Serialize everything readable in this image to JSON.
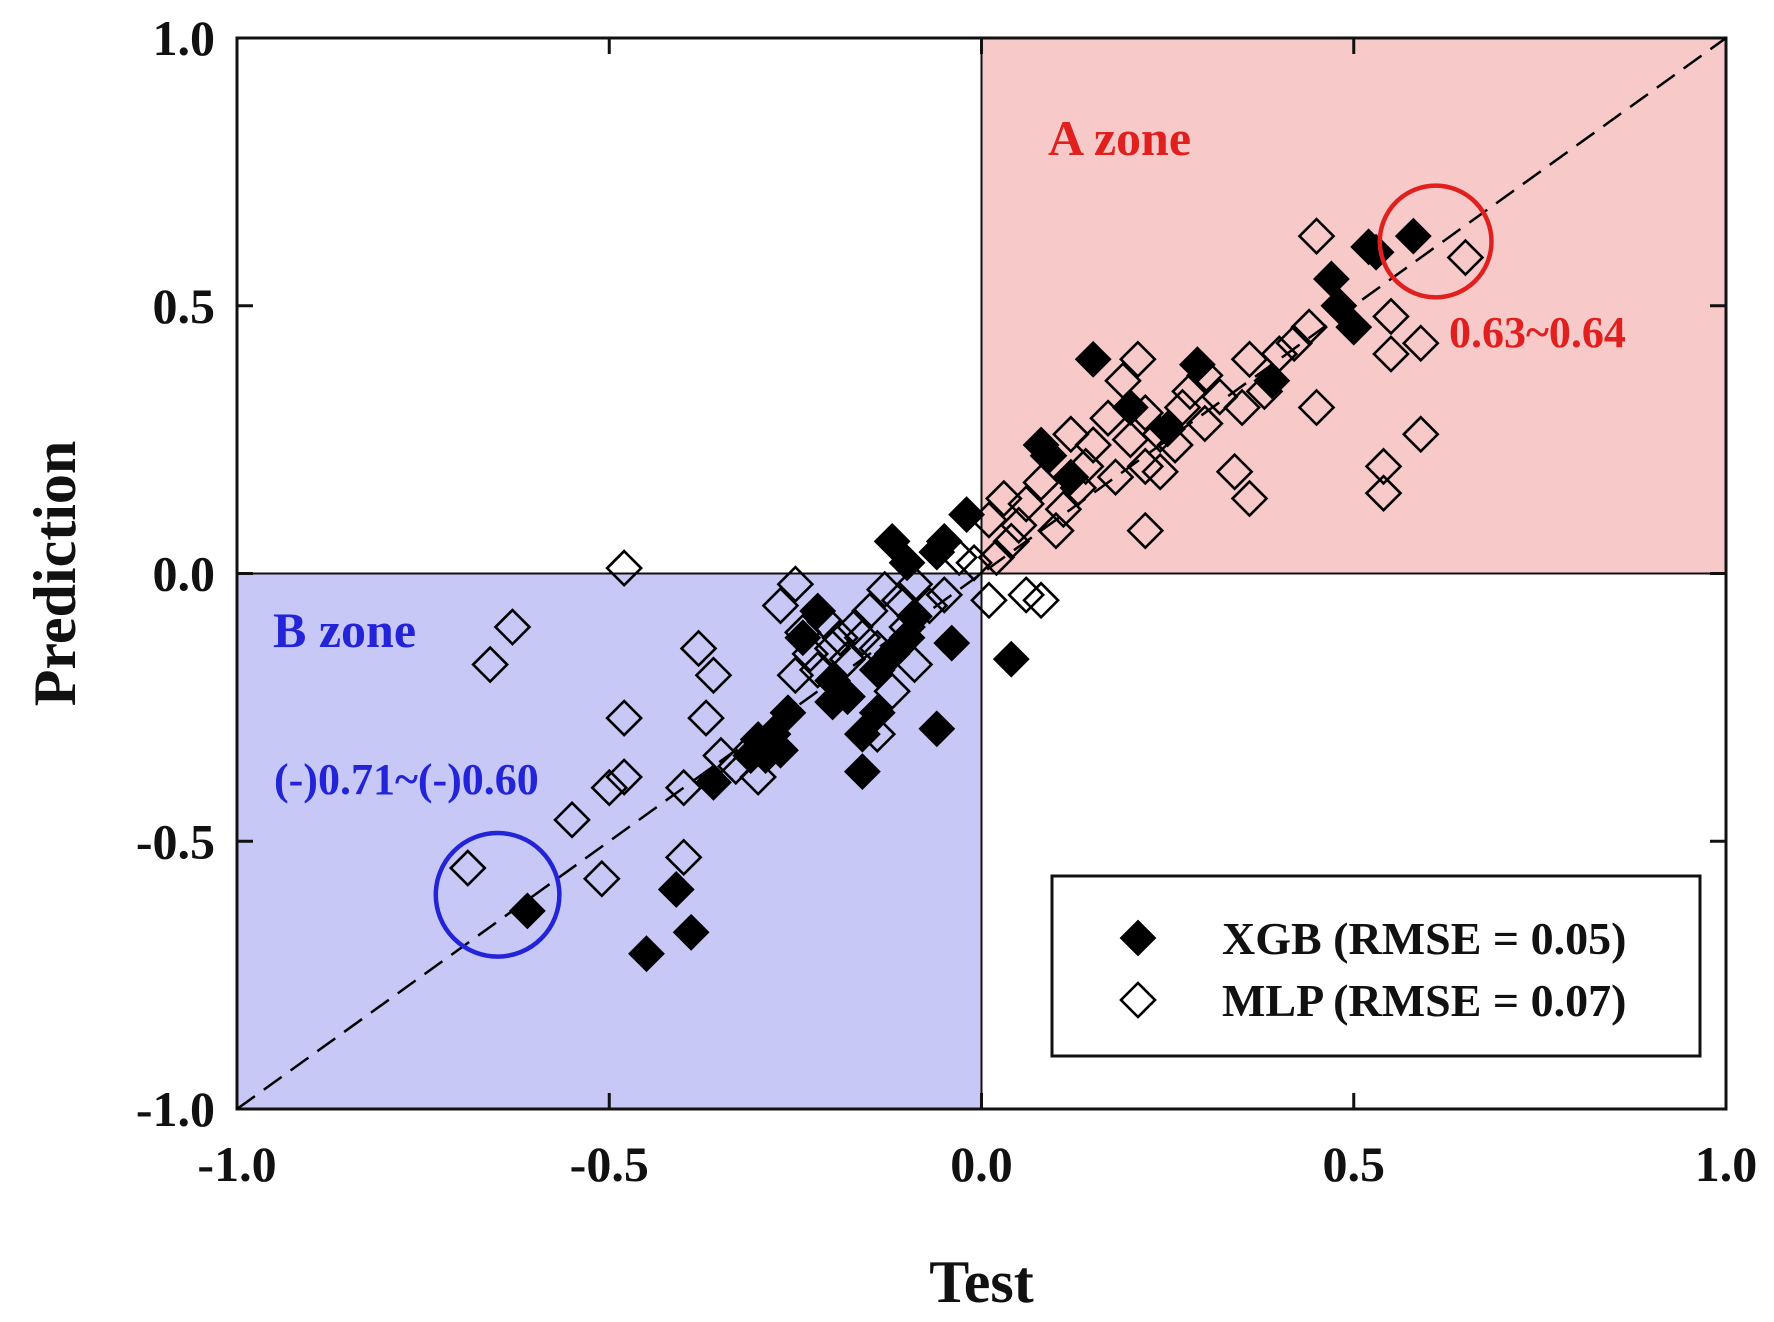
{
  "chart_data": {
    "type": "scatter",
    "title": "",
    "xlabel": "Test",
    "ylabel": "Prediction",
    "xlim": [
      -1.0,
      1.0
    ],
    "ylim": [
      -1.0,
      1.0
    ],
    "xticks": [
      -1.0,
      -0.5,
      0.0,
      0.5,
      1.0
    ],
    "yticks": [
      -1.0,
      -0.5,
      0.0,
      0.5,
      1.0
    ],
    "xtick_labels": [
      "-1.0",
      "-0.5",
      "0.0",
      "0.5",
      "1.0"
    ],
    "ytick_labels": [
      "-1.0",
      "-0.5",
      "0.0",
      "0.5",
      "1.0"
    ],
    "reference_line": {
      "label": "y = x",
      "style": "dashed",
      "color": "#000000"
    },
    "zones": [
      {
        "name": "A zone",
        "x_range": [
          0.0,
          1.0
        ],
        "y_range": [
          0.0,
          1.0
        ],
        "fill": "#f7c9c9",
        "label_color": "#e0201e"
      },
      {
        "name": "B zone",
        "x_range": [
          -1.0,
          0.0
        ],
        "y_range": [
          -1.0,
          0.0
        ],
        "fill": "#c8c8f7",
        "label_color": "#2323d8"
      }
    ],
    "annotations": [
      {
        "text": "0.63~0.64",
        "color": "#e0201e",
        "circle_center": [
          0.61,
          0.62
        ],
        "circle_radius": 0.075
      },
      {
        "text": "(-)0.71~(-)0.60",
        "color": "#2323d8",
        "circle_center": [
          -0.65,
          -0.6
        ],
        "circle_radius": 0.083
      }
    ],
    "legend_position": "bottom-right",
    "series": [
      {
        "name": "XGB (RMSE = 0.05)",
        "marker": "filled-diamond",
        "color": "#000000",
        "points": [
          [
            0.58,
            0.63
          ],
          [
            0.52,
            0.61
          ],
          [
            0.53,
            0.6
          ],
          [
            0.47,
            0.55
          ],
          [
            0.48,
            0.5
          ],
          [
            0.5,
            0.46
          ],
          [
            0.15,
            0.4
          ],
          [
            0.29,
            0.39
          ],
          [
            0.39,
            0.36
          ],
          [
            0.2,
            0.31
          ],
          [
            0.08,
            0.24
          ],
          [
            0.09,
            0.22
          ],
          [
            0.12,
            0.18
          ],
          [
            0.25,
            0.27
          ],
          [
            -0.02,
            0.11
          ],
          [
            -0.12,
            0.06
          ],
          [
            -0.05,
            0.06
          ],
          [
            -0.1,
            0.02
          ],
          [
            -0.06,
            0.04
          ],
          [
            0.04,
            -0.16
          ],
          [
            -0.06,
            -0.29
          ],
          [
            -0.16,
            -0.37
          ],
          [
            -0.16,
            -0.3
          ],
          [
            -0.18,
            -0.23
          ],
          [
            -0.2,
            -0.24
          ],
          [
            -0.2,
            -0.2
          ],
          [
            -0.14,
            -0.26
          ],
          [
            -0.14,
            -0.18
          ],
          [
            -0.12,
            -0.15
          ],
          [
            -0.1,
            -0.12
          ],
          [
            -0.09,
            -0.08
          ],
          [
            -0.04,
            -0.13
          ],
          [
            -0.26,
            -0.26
          ],
          [
            -0.28,
            -0.3
          ],
          [
            -0.29,
            -0.34
          ],
          [
            -0.27,
            -0.33
          ],
          [
            -0.3,
            -0.31
          ],
          [
            -0.31,
            -0.34
          ],
          [
            -0.36,
            -0.39
          ],
          [
            -0.41,
            -0.59
          ],
          [
            -0.39,
            -0.67
          ],
          [
            -0.45,
            -0.71
          ],
          [
            -0.61,
            -0.63
          ],
          [
            -0.24,
            -0.12
          ],
          [
            -0.22,
            -0.07
          ]
        ]
      },
      {
        "name": "MLP (RMSE = 0.07)",
        "marker": "open-diamond",
        "color": "#000000",
        "points": [
          [
            0.65,
            0.59
          ],
          [
            0.45,
            0.63
          ],
          [
            0.59,
            0.43
          ],
          [
            0.55,
            0.48
          ],
          [
            0.55,
            0.41
          ],
          [
            0.59,
            0.26
          ],
          [
            0.54,
            0.2
          ],
          [
            0.54,
            0.15
          ],
          [
            0.45,
            0.31
          ],
          [
            0.44,
            0.46
          ],
          [
            0.42,
            0.43
          ],
          [
            0.36,
            0.4
          ],
          [
            0.38,
            0.34
          ],
          [
            0.35,
            0.31
          ],
          [
            0.36,
            0.14
          ],
          [
            0.34,
            0.19
          ],
          [
            0.3,
            0.37
          ],
          [
            0.27,
            0.31
          ],
          [
            0.24,
            0.26
          ],
          [
            0.22,
            0.2
          ],
          [
            0.19,
            0.36
          ],
          [
            0.21,
            0.4
          ],
          [
            0.22,
            0.3
          ],
          [
            0.24,
            0.19
          ],
          [
            0.22,
            0.08
          ],
          [
            0.17,
            0.29
          ],
          [
            0.15,
            0.24
          ],
          [
            0.14,
            0.2
          ],
          [
            0.13,
            0.16
          ],
          [
            0.11,
            0.12
          ],
          [
            0.09,
            0.22
          ],
          [
            0.08,
            0.17
          ],
          [
            0.06,
            0.13
          ],
          [
            0.05,
            0.09
          ],
          [
            0.04,
            0.06
          ],
          [
            0.03,
            0.14
          ],
          [
            0.02,
            0.03
          ],
          [
            0.01,
            0.1
          ],
          [
            -0.01,
            0.02
          ],
          [
            -0.03,
            0.03
          ],
          [
            0.01,
            -0.05
          ],
          [
            0.06,
            -0.04
          ],
          [
            0.08,
            -0.05
          ],
          [
            -0.05,
            -0.04
          ],
          [
            -0.07,
            -0.06
          ],
          [
            -0.09,
            -0.02
          ],
          [
            -0.11,
            -0.05
          ],
          [
            -0.13,
            -0.03
          ],
          [
            -0.15,
            -0.07
          ],
          [
            -0.17,
            -0.1
          ],
          [
            -0.19,
            -0.12
          ],
          [
            -0.21,
            -0.09
          ],
          [
            -0.23,
            -0.15
          ],
          [
            -0.25,
            -0.02
          ],
          [
            -0.27,
            -0.06
          ],
          [
            -0.25,
            -0.19
          ],
          [
            -0.24,
            -0.11
          ],
          [
            -0.14,
            -0.14
          ],
          [
            -0.12,
            -0.22
          ],
          [
            -0.09,
            -0.17
          ],
          [
            -0.14,
            -0.3
          ],
          [
            -0.31,
            -0.33
          ],
          [
            -0.33,
            -0.36
          ],
          [
            -0.35,
            -0.34
          ],
          [
            -0.37,
            -0.27
          ],
          [
            -0.36,
            -0.19
          ],
          [
            -0.38,
            -0.14
          ],
          [
            -0.48,
            0.01
          ],
          [
            -0.63,
            -0.1
          ],
          [
            -0.66,
            -0.17
          ],
          [
            -0.48,
            -0.27
          ],
          [
            -0.5,
            -0.4
          ],
          [
            -0.48,
            -0.38
          ],
          [
            -0.4,
            -0.4
          ],
          [
            -0.4,
            -0.53
          ],
          [
            -0.51,
            -0.57
          ],
          [
            -0.55,
            -0.46
          ],
          [
            -0.69,
            -0.55
          ],
          [
            -0.3,
            -0.38
          ],
          [
            -0.22,
            -0.18
          ],
          [
            -0.2,
            -0.14
          ],
          [
            -0.18,
            -0.16
          ],
          [
            -0.16,
            -0.12
          ],
          [
            -0.1,
            -0.1
          ],
          [
            0.18,
            0.18
          ],
          [
            0.26,
            0.24
          ],
          [
            0.1,
            0.08
          ],
          [
            0.2,
            0.25
          ],
          [
            0.28,
            0.34
          ],
          [
            0.32,
            0.33
          ],
          [
            0.3,
            0.28
          ],
          [
            0.4,
            0.41
          ],
          [
            0.12,
            0.26
          ]
        ]
      }
    ]
  }
}
